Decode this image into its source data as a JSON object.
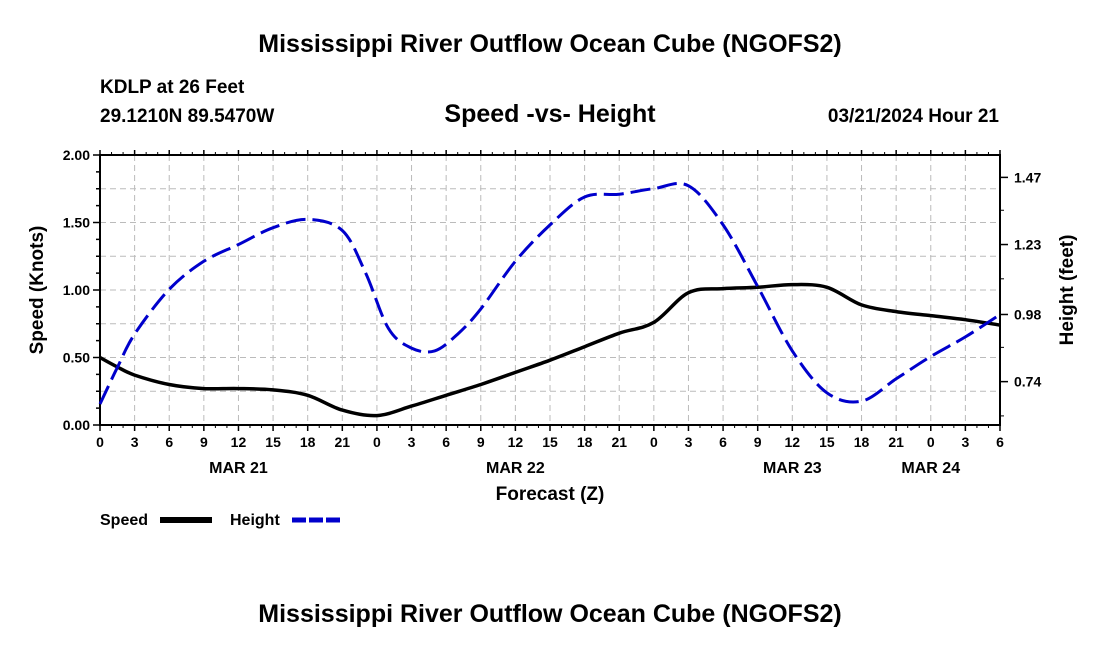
{
  "header": {
    "title": "Mississippi River Outflow Ocean Cube (NGOFS2)",
    "station": "KDLP at 26 Feet",
    "coords": "29.1210N  89.5470W",
    "subtitle": "Speed -vs- Height",
    "datetime": "03/21/2024 Hour 21"
  },
  "footer": {
    "title": "Mississippi River Outflow Ocean Cube (NGOFS2)"
  },
  "colors": {
    "speed": "#000000",
    "height": "#0000cc",
    "grid": "#bbbbbb"
  },
  "chart_data": {
    "type": "line",
    "title": "Speed -vs- Height",
    "xlabel": "Forecast (Z)",
    "ylabel_left": "Speed (Knots)",
    "ylabel_right": "Height (feet)",
    "xlim": [
      0,
      78
    ],
    "ylim_left": [
      0,
      2
    ],
    "ylim_right": [
      0.585,
      1.55
    ],
    "x_tick_labels": [
      "0",
      "3",
      "6",
      "9",
      "12",
      "15",
      "18",
      "21",
      "0",
      "3",
      "6",
      "9",
      "12",
      "15",
      "18",
      "21",
      "0",
      "3",
      "6",
      "9",
      "12",
      "15",
      "18",
      "21",
      "0",
      "3",
      "6"
    ],
    "left_ticks": [
      0,
      0.5,
      1.0,
      1.5,
      2.0
    ],
    "left_tick_labels": [
      "0.00",
      "0.50",
      "1.00",
      "1.50",
      "2.00"
    ],
    "right_ticks": [
      0.74,
      0.98,
      1.23,
      1.47
    ],
    "right_tick_labels": [
      "0.74",
      "0.98",
      "1.23",
      "1.47"
    ],
    "date_labels": [
      {
        "hour": 12,
        "label": "MAR 21"
      },
      {
        "hour": 36,
        "label": "MAR 22"
      },
      {
        "hour": 60,
        "label": "MAR 23"
      },
      {
        "hour": 72,
        "label": "MAR 24"
      }
    ],
    "series": [
      {
        "name": "Speed",
        "axis": "left",
        "style": "solid",
        "x": [
          0,
          1.5,
          3,
          6,
          9,
          12,
          15,
          18,
          21,
          24,
          27,
          30,
          33,
          36,
          39,
          42,
          45,
          48,
          51,
          54,
          57,
          60,
          63,
          66,
          69,
          72,
          75,
          78
        ],
        "y": [
          0.5,
          0.43,
          0.37,
          0.3,
          0.27,
          0.27,
          0.26,
          0.22,
          0.11,
          0.07,
          0.14,
          0.22,
          0.3,
          0.39,
          0.48,
          0.58,
          0.68,
          0.76,
          0.98,
          1.01,
          1.02,
          1.04,
          1.02,
          0.89,
          0.84,
          0.81,
          0.78,
          0.74
        ]
      },
      {
        "name": "Height",
        "axis": "right",
        "style": "dashed",
        "x": [
          0,
          1.5,
          3,
          6,
          9,
          12,
          15,
          18,
          21,
          23,
          25,
          27,
          29,
          31,
          33,
          36,
          39,
          42,
          45,
          48,
          51,
          54,
          57,
          60,
          63,
          66,
          69,
          72,
          75,
          78
        ],
        "y": [
          0.66,
          0.79,
          0.91,
          1.07,
          1.17,
          1.23,
          1.29,
          1.32,
          1.28,
          1.13,
          0.93,
          0.86,
          0.85,
          0.91,
          1.0,
          1.17,
          1.3,
          1.4,
          1.41,
          1.43,
          1.44,
          1.3,
          1.08,
          0.85,
          0.7,
          0.67,
          0.75,
          0.83,
          0.9,
          0.98
        ]
      }
    ],
    "legend": [
      {
        "label": "Speed",
        "style": "solid"
      },
      {
        "label": "Height",
        "style": "dashed"
      }
    ]
  }
}
